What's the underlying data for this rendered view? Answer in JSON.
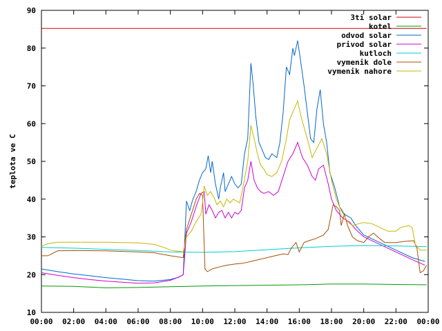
{
  "chart_data": {
    "type": "line",
    "title": "",
    "xlabel": "",
    "ylabel": "teplota ve C",
    "xlim": [
      0,
      24
    ],
    "ylim": [
      10,
      90
    ],
    "grid": false,
    "legend_position": "top-right",
    "x_tick_labels": [
      "00:00",
      "02:00",
      "04:00",
      "06:00",
      "08:00",
      "10:00",
      "12:00",
      "14:00",
      "16:00",
      "18:00",
      "20:00",
      "22:00",
      "00:00"
    ],
    "y_tick_labels": [
      "10",
      "20",
      "30",
      "40",
      "50",
      "60",
      "70",
      "80",
      "90"
    ],
    "y_ticks": [
      10,
      20,
      30,
      40,
      50,
      60,
      70,
      80,
      90
    ],
    "series": [
      {
        "name": "3ti solar",
        "color": "#cc0000",
        "points": [
          [
            0,
            85.2
          ],
          [
            23.9,
            85.2
          ]
        ]
      },
      {
        "name": "kotel",
        "color": "#009900",
        "points": [
          [
            0,
            17
          ],
          [
            2,
            16.9
          ],
          [
            4,
            16.5
          ],
          [
            6,
            16.6
          ],
          [
            8,
            16.8
          ],
          [
            10,
            17
          ],
          [
            12,
            17.1
          ],
          [
            14,
            17.2
          ],
          [
            16,
            17.3
          ],
          [
            18,
            17.5
          ],
          [
            20,
            17.5
          ],
          [
            22,
            17.4
          ],
          [
            23.9,
            17.3
          ]
        ]
      },
      {
        "name": "odvod solar",
        "color": "#0066cc",
        "points": [
          [
            0,
            21.5
          ],
          [
            1,
            20.8
          ],
          [
            2,
            20.2
          ],
          [
            3,
            19.7
          ],
          [
            4,
            19.2
          ],
          [
            5,
            18.8
          ],
          [
            6,
            18.4
          ],
          [
            7,
            18.3
          ],
          [
            8,
            18.7
          ],
          [
            8.5,
            19.3
          ],
          [
            8.8,
            20
          ],
          [
            9.0,
            39.5
          ],
          [
            9.2,
            37
          ],
          [
            9.4,
            40
          ],
          [
            9.6,
            42
          ],
          [
            9.8,
            45
          ],
          [
            10.0,
            47
          ],
          [
            10.2,
            48
          ],
          [
            10.35,
            51.5
          ],
          [
            10.5,
            47
          ],
          [
            10.6,
            50
          ],
          [
            10.8,
            44
          ],
          [
            11.0,
            40
          ],
          [
            11.1,
            43
          ],
          [
            11.3,
            47
          ],
          [
            11.4,
            42
          ],
          [
            11.6,
            44
          ],
          [
            11.8,
            46
          ],
          [
            12.0,
            44
          ],
          [
            12.2,
            43
          ],
          [
            12.4,
            44
          ],
          [
            12.6,
            52
          ],
          [
            12.8,
            56
          ],
          [
            13.0,
            76
          ],
          [
            13.15,
            70
          ],
          [
            13.3,
            62
          ],
          [
            13.5,
            55
          ],
          [
            13.7,
            53
          ],
          [
            13.9,
            51
          ],
          [
            14.1,
            50.5
          ],
          [
            14.3,
            52
          ],
          [
            14.6,
            51
          ],
          [
            14.8,
            55
          ],
          [
            15.0,
            63
          ],
          [
            15.2,
            75
          ],
          [
            15.4,
            73
          ],
          [
            15.6,
            80
          ],
          [
            15.7,
            78
          ],
          [
            15.9,
            82
          ],
          [
            16.1,
            76
          ],
          [
            16.3,
            70
          ],
          [
            16.5,
            63
          ],
          [
            16.7,
            56
          ],
          [
            16.9,
            55
          ],
          [
            17.1,
            64
          ],
          [
            17.3,
            69
          ],
          [
            17.5,
            60
          ],
          [
            17.7,
            55
          ],
          [
            17.9,
            47
          ],
          [
            18.2,
            43
          ],
          [
            18.5,
            38
          ],
          [
            18.8,
            36
          ],
          [
            19.2,
            35
          ],
          [
            19.5,
            33
          ],
          [
            20.0,
            30.5
          ],
          [
            21.0,
            28.5
          ],
          [
            22.0,
            26.5
          ],
          [
            23.0,
            24.5
          ],
          [
            23.8,
            23.5
          ]
        ]
      },
      {
        "name": "privod solar",
        "color": "#cc00cc",
        "points": [
          [
            0,
            20.5
          ],
          [
            1,
            19.8
          ],
          [
            2,
            19.2
          ],
          [
            3,
            18.7
          ],
          [
            4,
            18.3
          ],
          [
            5,
            18
          ],
          [
            6,
            17.7
          ],
          [
            7,
            17.8
          ],
          [
            8,
            18.5
          ],
          [
            8.6,
            19.5
          ],
          [
            8.8,
            20
          ],
          [
            9.0,
            31
          ],
          [
            9.3,
            34
          ],
          [
            9.6,
            38
          ],
          [
            9.9,
            41.5
          ],
          [
            10.1,
            42
          ],
          [
            10.2,
            36
          ],
          [
            10.4,
            38.5
          ],
          [
            10.6,
            37
          ],
          [
            10.8,
            35
          ],
          [
            11.0,
            36.5
          ],
          [
            11.2,
            37
          ],
          [
            11.4,
            35
          ],
          [
            11.6,
            36.5
          ],
          [
            11.8,
            35
          ],
          [
            12.0,
            36.5
          ],
          [
            12.2,
            36
          ],
          [
            12.4,
            37
          ],
          [
            12.6,
            43
          ],
          [
            12.8,
            45
          ],
          [
            13.0,
            50
          ],
          [
            13.2,
            45
          ],
          [
            13.4,
            43
          ],
          [
            13.6,
            42
          ],
          [
            13.8,
            41.5
          ],
          [
            14.1,
            42
          ],
          [
            14.4,
            41
          ],
          [
            14.7,
            42
          ],
          [
            15.0,
            46
          ],
          [
            15.3,
            50
          ],
          [
            15.6,
            52
          ],
          [
            15.9,
            55
          ],
          [
            16.2,
            51
          ],
          [
            16.5,
            49
          ],
          [
            16.8,
            46
          ],
          [
            17.0,
            45
          ],
          [
            17.2,
            48
          ],
          [
            17.5,
            49
          ],
          [
            17.8,
            44
          ],
          [
            18.0,
            40
          ],
          [
            18.3,
            37
          ],
          [
            18.7,
            35
          ],
          [
            19.1,
            34
          ],
          [
            19.5,
            32
          ],
          [
            20,
            30
          ],
          [
            21,
            28
          ],
          [
            22,
            26
          ],
          [
            23,
            24
          ],
          [
            23.8,
            22.5
          ]
        ]
      },
      {
        "name": "kutloch",
        "color": "#00cccc",
        "points": [
          [
            0,
            27.2
          ],
          [
            2,
            27
          ],
          [
            4,
            26.7
          ],
          [
            6,
            26.4
          ],
          [
            8,
            26
          ],
          [
            10,
            25.9
          ],
          [
            12,
            26.1
          ],
          [
            14,
            26.6
          ],
          [
            16,
            27.1
          ],
          [
            18,
            27.5
          ],
          [
            20,
            27.7
          ],
          [
            22,
            27.6
          ],
          [
            23.9,
            27.4
          ]
        ]
      },
      {
        "name": "vymenik dole",
        "color": "#a84b00",
        "points": [
          [
            0,
            25
          ],
          [
            0.4,
            25
          ],
          [
            1,
            26.3
          ],
          [
            2,
            26.4
          ],
          [
            4,
            26.3
          ],
          [
            6,
            26
          ],
          [
            7,
            25.8
          ],
          [
            8,
            25
          ],
          [
            8.8,
            24.5
          ],
          [
            9.0,
            32
          ],
          [
            9.3,
            36
          ],
          [
            9.6,
            40
          ],
          [
            9.8,
            41.5
          ],
          [
            10.0,
            41
          ],
          [
            10.15,
            21.5
          ],
          [
            10.3,
            20.8
          ],
          [
            10.6,
            21.5
          ],
          [
            11,
            22
          ],
          [
            11.5,
            22.5
          ],
          [
            12,
            22.8
          ],
          [
            12.5,
            23
          ],
          [
            13,
            23.5
          ],
          [
            13.5,
            24
          ],
          [
            14,
            24.5
          ],
          [
            14.5,
            25
          ],
          [
            15,
            25.5
          ],
          [
            15.3,
            25.3
          ],
          [
            15.5,
            27
          ],
          [
            15.8,
            28.5
          ],
          [
            16.0,
            26
          ],
          [
            16.3,
            28.5
          ],
          [
            16.6,
            29
          ],
          [
            17,
            29.5
          ],
          [
            17.5,
            30.5
          ],
          [
            17.8,
            32
          ],
          [
            18.1,
            38.5
          ],
          [
            18.3,
            38
          ],
          [
            18.5,
            37
          ],
          [
            18.6,
            33
          ],
          [
            18.8,
            36
          ],
          [
            19.0,
            33
          ],
          [
            19.3,
            30
          ],
          [
            19.6,
            29
          ],
          [
            20,
            28.5
          ],
          [
            20.3,
            30
          ],
          [
            20.6,
            31
          ],
          [
            21,
            29.5
          ],
          [
            21.3,
            28.5
          ],
          [
            22,
            28.5
          ],
          [
            22.5,
            28.8
          ],
          [
            23.1,
            29
          ],
          [
            23.3,
            27
          ],
          [
            23.5,
            20.5
          ],
          [
            23.7,
            21
          ],
          [
            23.9,
            22.5
          ]
        ]
      },
      {
        "name": "vymenik nahore",
        "color": "#c8b400",
        "points": [
          [
            0,
            27.5
          ],
          [
            0.4,
            28.2
          ],
          [
            1,
            28.6
          ],
          [
            2,
            28.6
          ],
          [
            4,
            28.6
          ],
          [
            6,
            28.4
          ],
          [
            7,
            28
          ],
          [
            7.6,
            27.2
          ],
          [
            8,
            26.5
          ],
          [
            8.8,
            26
          ],
          [
            9.0,
            30
          ],
          [
            9.3,
            31.5
          ],
          [
            9.6,
            34
          ],
          [
            9.9,
            36
          ],
          [
            10.0,
            39
          ],
          [
            10.1,
            43.5
          ],
          [
            10.3,
            41
          ],
          [
            10.5,
            42
          ],
          [
            10.7,
            40.5
          ],
          [
            10.9,
            38.5
          ],
          [
            11.1,
            39.5
          ],
          [
            11.3,
            38
          ],
          [
            11.5,
            40
          ],
          [
            11.7,
            39
          ],
          [
            11.9,
            40
          ],
          [
            12.1,
            39.5
          ],
          [
            12.3,
            39
          ],
          [
            12.5,
            43
          ],
          [
            12.8,
            50
          ],
          [
            13.0,
            59.5
          ],
          [
            13.2,
            56
          ],
          [
            13.4,
            52
          ],
          [
            13.6,
            49
          ],
          [
            13.8,
            48
          ],
          [
            14.0,
            46.5
          ],
          [
            14.3,
            46
          ],
          [
            14.6,
            47
          ],
          [
            14.9,
            50
          ],
          [
            15.2,
            56
          ],
          [
            15.4,
            61
          ],
          [
            15.7,
            64
          ],
          [
            15.9,
            66
          ],
          [
            16.1,
            62
          ],
          [
            16.3,
            59
          ],
          [
            16.5,
            56
          ],
          [
            16.8,
            51
          ],
          [
            17.1,
            53.5
          ],
          [
            17.4,
            56
          ],
          [
            17.7,
            52
          ],
          [
            18.0,
            45
          ],
          [
            18.3,
            40
          ],
          [
            18.6,
            37
          ],
          [
            19.0,
            34
          ],
          [
            19.3,
            33
          ],
          [
            19.7,
            33.5
          ],
          [
            20,
            33.8
          ],
          [
            20.5,
            33.5
          ],
          [
            21,
            32.5
          ],
          [
            21.5,
            31.5
          ],
          [
            22,
            31.5
          ],
          [
            22.3,
            32.5
          ],
          [
            22.8,
            33
          ],
          [
            23.0,
            32.5
          ],
          [
            23.2,
            28
          ],
          [
            23.5,
            26.5
          ],
          [
            23.9,
            26.5
          ]
        ]
      }
    ]
  }
}
